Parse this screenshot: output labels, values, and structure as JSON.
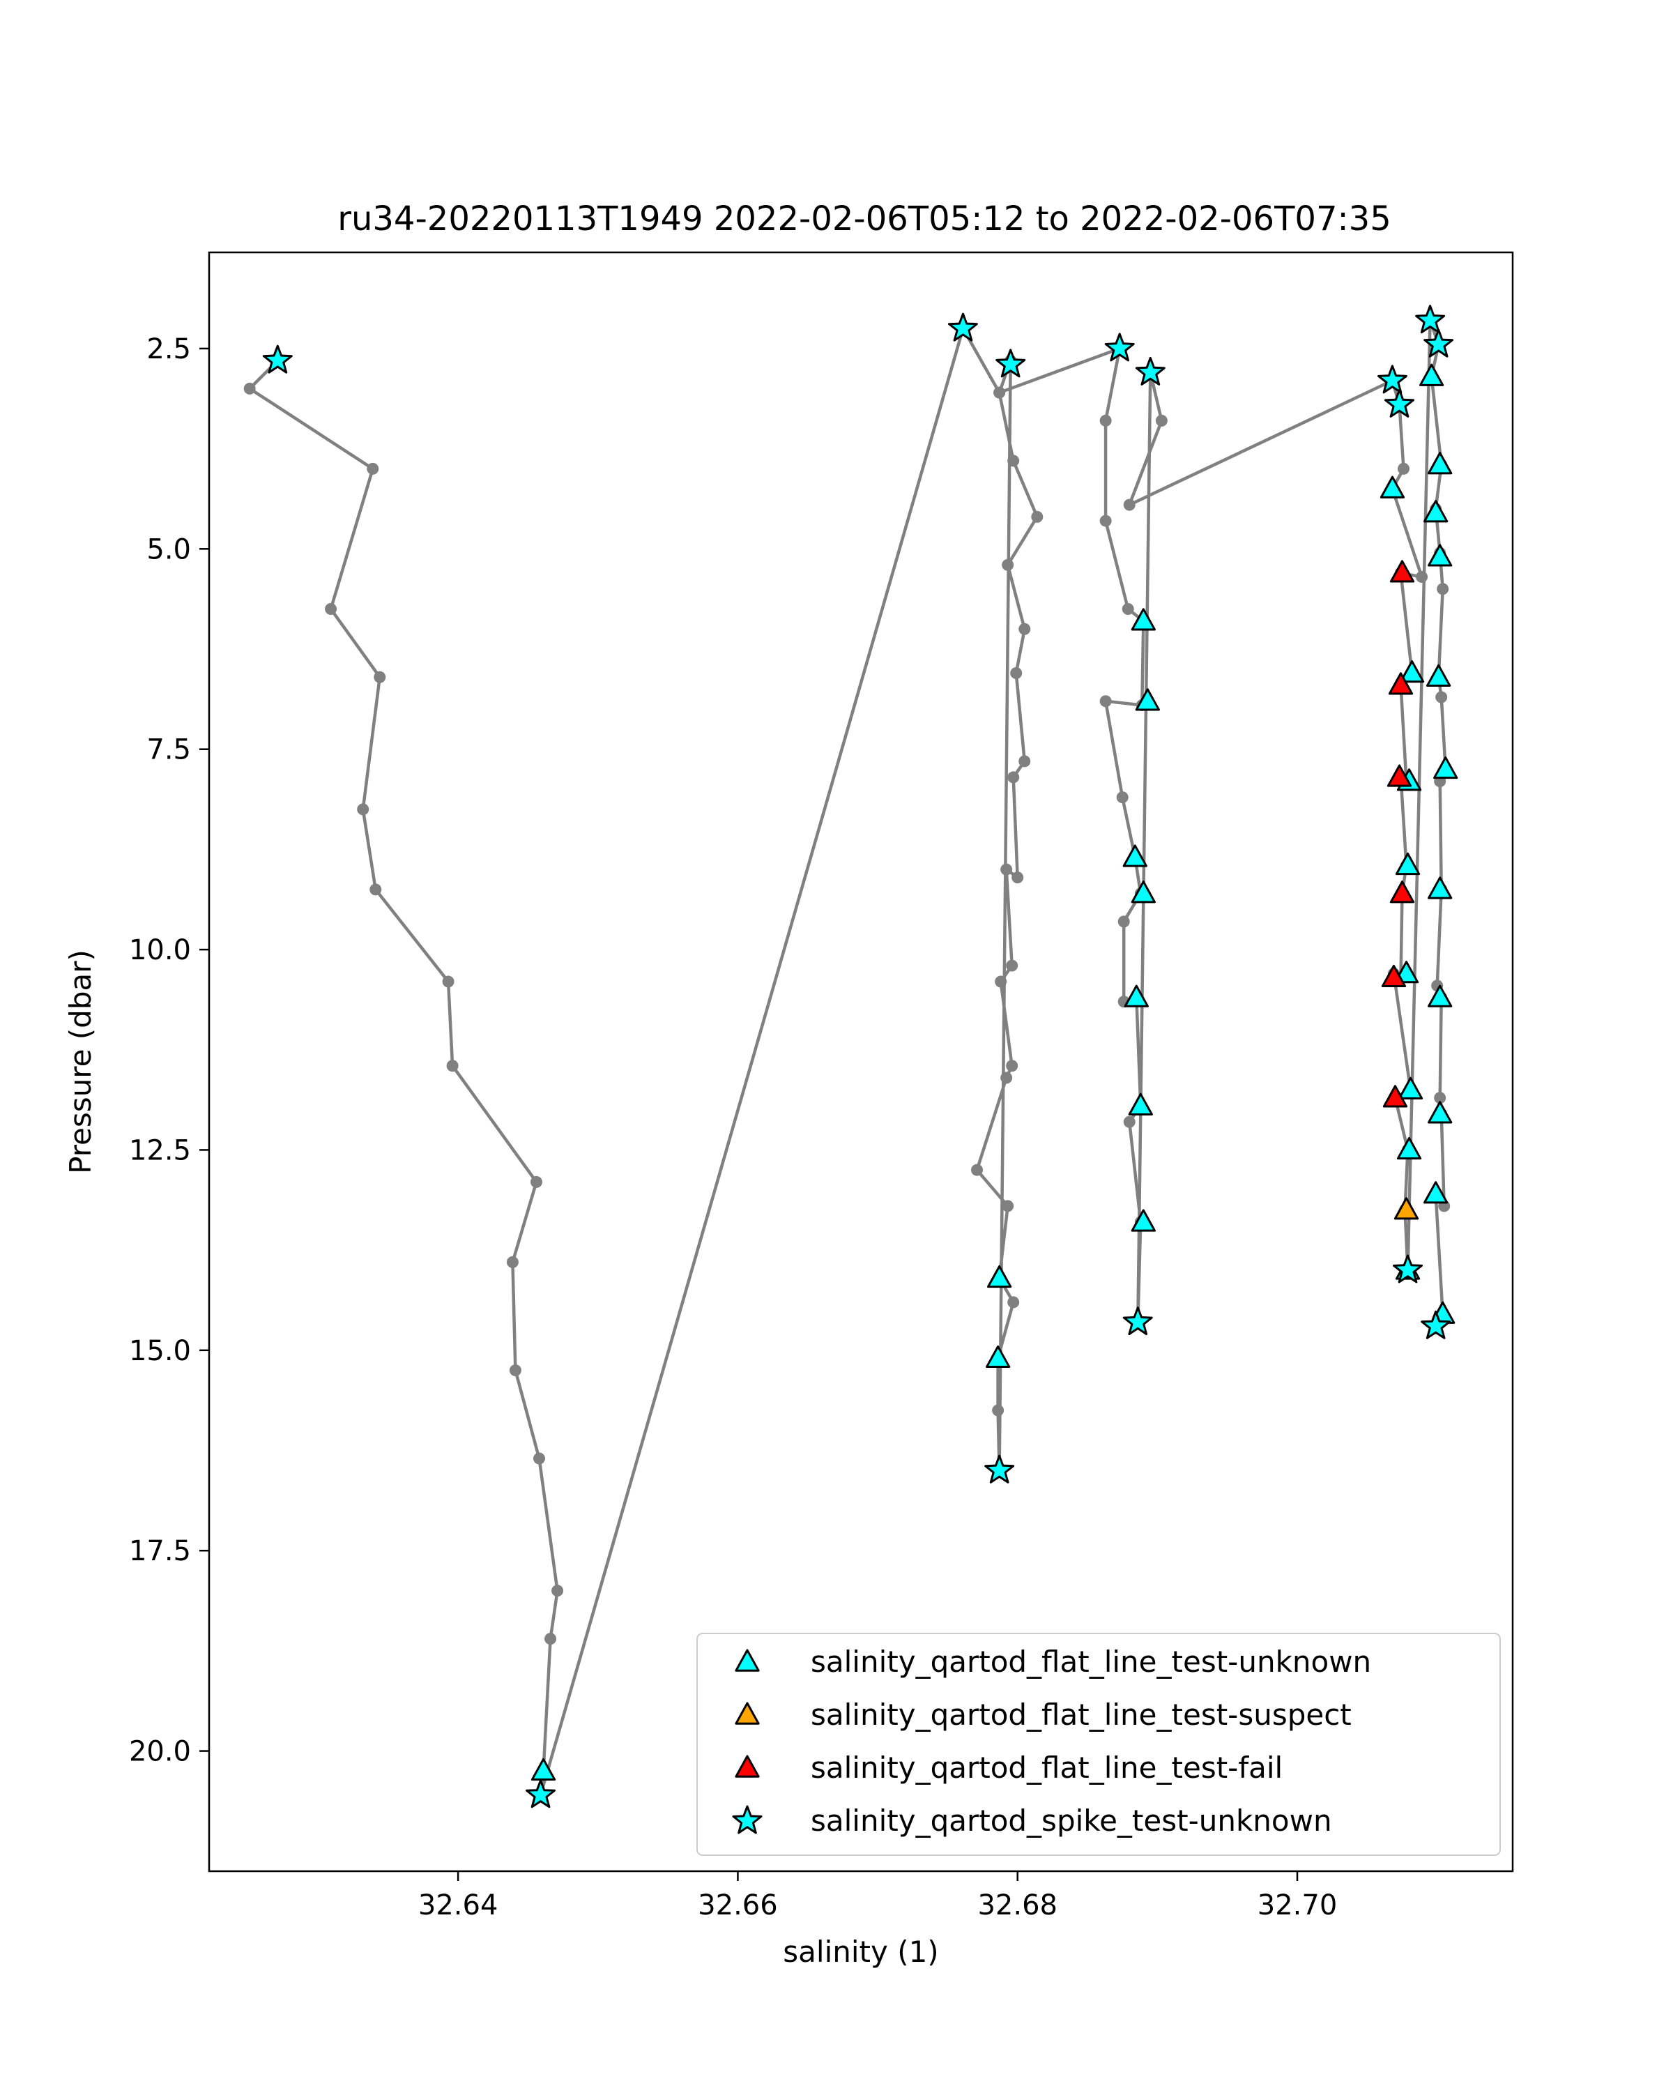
{
  "chart_data": {
    "type": "scatter",
    "title": "ru34-20220113T1949 2022-02-06T05:12 to 2022-02-06T07:35",
    "xlabel": "salinity (1)",
    "ylabel": "Pressure (dbar)",
    "xlim": [
      32.6222,
      32.7154
    ],
    "ylim": [
      21.5,
      1.3
    ],
    "y_inverted": true,
    "x_ticks": [
      "32.64",
      "32.66",
      "32.68",
      "32.70"
    ],
    "x_tick_values": [
      32.64,
      32.66,
      32.68,
      32.7
    ],
    "y_ticks": [
      "2.5",
      "5.0",
      "7.5",
      "10.0",
      "12.5",
      "15.0",
      "17.5",
      "20.0"
    ],
    "y_tick_values": [
      2.5,
      5.0,
      7.5,
      10.0,
      12.5,
      15.0,
      17.5,
      20.0
    ],
    "grid": false,
    "legend_position": "lower-right",
    "colors": {
      "line": "#808080",
      "unknown": "#00ffff",
      "suspect": "#ffa500",
      "fail": "#ff0000",
      "edge": "#000000"
    },
    "profile_line": [
      [
        32.6271,
        2.65
      ],
      [
        32.6251,
        3.0
      ],
      [
        32.6339,
        4.0
      ],
      [
        32.6309,
        5.75
      ],
      [
        32.6344,
        6.6
      ],
      [
        32.6332,
        8.25
      ],
      [
        32.6341,
        9.25
      ],
      [
        32.6393,
        10.4
      ],
      [
        32.6396,
        11.45
      ],
      [
        32.6456,
        12.9
      ],
      [
        32.6439,
        13.9
      ],
      [
        32.6441,
        15.25
      ],
      [
        32.6458,
        16.35
      ],
      [
        32.6471,
        18.0
      ],
      [
        32.6466,
        18.6
      ],
      [
        32.6461,
        20.25
      ],
      [
        32.6459,
        20.55
      ],
      [
        32.6761,
        2.25
      ],
      [
        32.6787,
        3.05
      ],
      [
        32.6797,
        3.9
      ],
      [
        32.6814,
        4.6
      ],
      [
        32.6793,
        5.2
      ],
      [
        32.6805,
        6.0
      ],
      [
        32.6799,
        6.55
      ],
      [
        32.6805,
        7.65
      ],
      [
        32.6797,
        7.85
      ],
      [
        32.68,
        9.1
      ],
      [
        32.6792,
        9.0
      ],
      [
        32.6796,
        10.2
      ],
      [
        32.6788,
        10.4
      ],
      [
        32.6796,
        11.45
      ],
      [
        32.6792,
        11.6
      ],
      [
        32.6771,
        12.75
      ],
      [
        32.6793,
        13.2
      ],
      [
        32.6787,
        14.1
      ],
      [
        32.6797,
        14.4
      ],
      [
        32.6786,
        15.1
      ],
      [
        32.6786,
        15.75
      ],
      [
        32.6787,
        16.5
      ],
      [
        32.6795,
        2.65
      ],
      [
        32.6787,
        3.05
      ],
      [
        32.6873,
        2.5
      ],
      [
        32.6863,
        3.4
      ],
      [
        32.6863,
        4.65
      ],
      [
        32.6879,
        5.75
      ],
      [
        32.689,
        5.9
      ],
      [
        32.6889,
        6.95
      ],
      [
        32.6863,
        6.9
      ],
      [
        32.6875,
        8.1
      ],
      [
        32.6884,
        8.85
      ],
      [
        32.6888,
        9.3
      ],
      [
        32.6876,
        9.65
      ],
      [
        32.6876,
        10.65
      ],
      [
        32.6885,
        10.6
      ],
      [
        32.6888,
        11.95
      ],
      [
        32.688,
        12.15
      ],
      [
        32.6888,
        13.4
      ],
      [
        32.6886,
        14.65
      ],
      [
        32.6895,
        2.8
      ],
      [
        32.6903,
        3.4
      ],
      [
        32.688,
        4.45
      ],
      [
        32.7068,
        2.9
      ],
      [
        32.7073,
        3.2
      ],
      [
        32.7076,
        4.0
      ],
      [
        32.7068,
        4.25
      ],
      [
        32.7089,
        5.35
      ],
      [
        32.7074,
        5.3
      ],
      [
        32.7082,
        6.55
      ],
      [
        32.7074,
        6.7
      ],
      [
        32.7078,
        7.9
      ],
      [
        32.7074,
        7.85
      ],
      [
        32.7078,
        8.95
      ],
      [
        32.7075,
        9.3
      ],
      [
        32.7074,
        10.35
      ],
      [
        32.7069,
        10.3
      ],
      [
        32.7081,
        11.75
      ],
      [
        32.707,
        11.85
      ],
      [
        32.7079,
        12.5
      ],
      [
        32.7077,
        13.25
      ],
      [
        32.7079,
        14.0
      ],
      [
        32.7095,
        2.15
      ],
      [
        32.7101,
        2.45
      ],
      [
        32.7096,
        2.85
      ],
      [
        32.7103,
        3.95
      ],
      [
        32.7099,
        4.5
      ],
      [
        32.7102,
        5.05
      ],
      [
        32.7104,
        5.5
      ],
      [
        32.7101,
        6.6
      ],
      [
        32.7103,
        6.85
      ],
      [
        32.7106,
        7.75
      ],
      [
        32.7102,
        7.9
      ],
      [
        32.7103,
        9.25
      ],
      [
        32.71,
        10.45
      ],
      [
        32.7103,
        10.6
      ],
      [
        32.7102,
        11.85
      ],
      [
        32.7103,
        12.05
      ],
      [
        32.7105,
        13.2
      ],
      [
        32.7099,
        13.05
      ],
      [
        32.7104,
        14.55
      ],
      [
        32.7099,
        14.7
      ]
    ],
    "series": [
      {
        "name": "salinity_qartod_flat_line_test-unknown",
        "marker": "triangle",
        "color": "#00ffff",
        "points": [
          [
            32.6461,
            20.25
          ],
          [
            32.6787,
            14.1
          ],
          [
            32.6786,
            15.1
          ],
          [
            32.689,
            5.9
          ],
          [
            32.6893,
            6.9
          ],
          [
            32.6884,
            8.85
          ],
          [
            32.689,
            9.3
          ],
          [
            32.6885,
            10.6
          ],
          [
            32.6888,
            11.95
          ],
          [
            32.689,
            13.4
          ],
          [
            32.7068,
            4.25
          ],
          [
            32.7082,
            6.55
          ],
          [
            32.708,
            7.9
          ],
          [
            32.7079,
            8.95
          ],
          [
            32.7078,
            10.3
          ],
          [
            32.7081,
            11.75
          ],
          [
            32.708,
            12.5
          ],
          [
            32.7079,
            14.0
          ],
          [
            32.7096,
            2.85
          ],
          [
            32.7102,
            3.95
          ],
          [
            32.7099,
            4.55
          ],
          [
            32.7102,
            5.1
          ],
          [
            32.7101,
            6.6
          ],
          [
            32.7106,
            7.75
          ],
          [
            32.7102,
            9.25
          ],
          [
            32.7102,
            10.6
          ],
          [
            32.7102,
            12.05
          ],
          [
            32.7099,
            13.05
          ],
          [
            32.7104,
            14.55
          ]
        ]
      },
      {
        "name": "salinity_qartod_flat_line_test-suspect",
        "marker": "triangle",
        "color": "#ffa500",
        "points": [
          [
            32.7078,
            13.25
          ]
        ]
      },
      {
        "name": "salinity_qartod_flat_line_test-fail",
        "marker": "triangle",
        "color": "#ff0000",
        "points": [
          [
            32.7075,
            5.3
          ],
          [
            32.7074,
            6.7
          ],
          [
            32.7073,
            7.85
          ],
          [
            32.7075,
            9.3
          ],
          [
            32.7069,
            10.35
          ],
          [
            32.707,
            11.85
          ]
        ]
      },
      {
        "name": "salinity_qartod_spike_test-unknown",
        "marker": "star",
        "color": "#00ffff",
        "points": [
          [
            32.6271,
            2.65
          ],
          [
            32.6459,
            20.55
          ],
          [
            32.6761,
            2.25
          ],
          [
            32.6795,
            2.7
          ],
          [
            32.6787,
            16.5
          ],
          [
            32.6873,
            2.5
          ],
          [
            32.6895,
            2.8
          ],
          [
            32.6886,
            14.65
          ],
          [
            32.7068,
            2.9
          ],
          [
            32.7073,
            3.2
          ],
          [
            32.7079,
            14.0
          ],
          [
            32.7095,
            2.15
          ],
          [
            32.7101,
            2.45
          ],
          [
            32.7099,
            14.7
          ]
        ]
      }
    ]
  }
}
